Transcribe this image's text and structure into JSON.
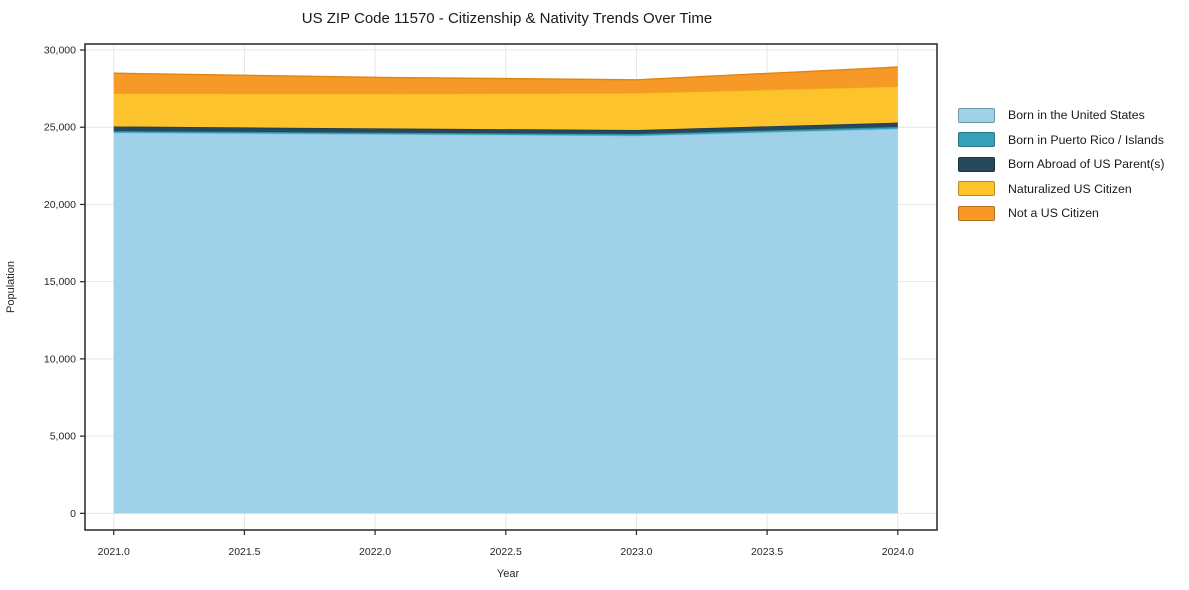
{
  "chart_data": {
    "type": "area",
    "stacked": true,
    "title": "US ZIP Code 11570 - Citizenship & Nativity Trends Over Time",
    "xlabel": "Year",
    "ylabel": "Population",
    "x": [
      2021,
      2022,
      2023,
      2024
    ],
    "series": [
      {
        "name": "Born in the United States",
        "color": "#9fd2e8",
        "edge": "#86c1dc",
        "values": [
          24650,
          24550,
          24450,
          24900
        ]
      },
      {
        "name": "Born in Puerto Rico / Islands",
        "color": "#35a1b9",
        "edge": "#2b8ea6",
        "values": [
          100,
          100,
          110,
          120
        ]
      },
      {
        "name": "Born Abroad of US Parent(s)",
        "color": "#26485a",
        "edge": "#1c3847",
        "values": [
          300,
          280,
          260,
          280
        ]
      },
      {
        "name": "Naturalized US Citizen",
        "color": "#fcc32d",
        "edge": "#eead0e",
        "values": [
          2150,
          2250,
          2400,
          2350
        ]
      },
      {
        "name": "Not a US Citizen",
        "color": "#f79927",
        "edge": "#e08413",
        "values": [
          1300,
          1050,
          850,
          1250
        ]
      }
    ],
    "stack_totals": [
      28500,
      28230,
      28070,
      28900
    ],
    "xlim": [
      2020.89,
      2024.15
    ],
    "ylim": [
      -1080,
      30390
    ],
    "xticks": {
      "values": [
        2021.0,
        2021.5,
        2022.0,
        2022.5,
        2023.0,
        2023.5,
        2024.0
      ],
      "labels": [
        "2021.0",
        "2021.5",
        "2022.0",
        "2022.5",
        "2023.0",
        "2023.5",
        "2024.0"
      ]
    },
    "yticks": {
      "values": [
        0,
        5000,
        10000,
        15000,
        20000,
        25000,
        30000
      ],
      "labels": [
        "0",
        "5,000",
        "10,000",
        "15,000",
        "20,000",
        "25,000",
        "30,000"
      ]
    },
    "grid": true,
    "legend_position": "right",
    "spine_color": "#262626",
    "grid_color": "#e7e7e7"
  }
}
